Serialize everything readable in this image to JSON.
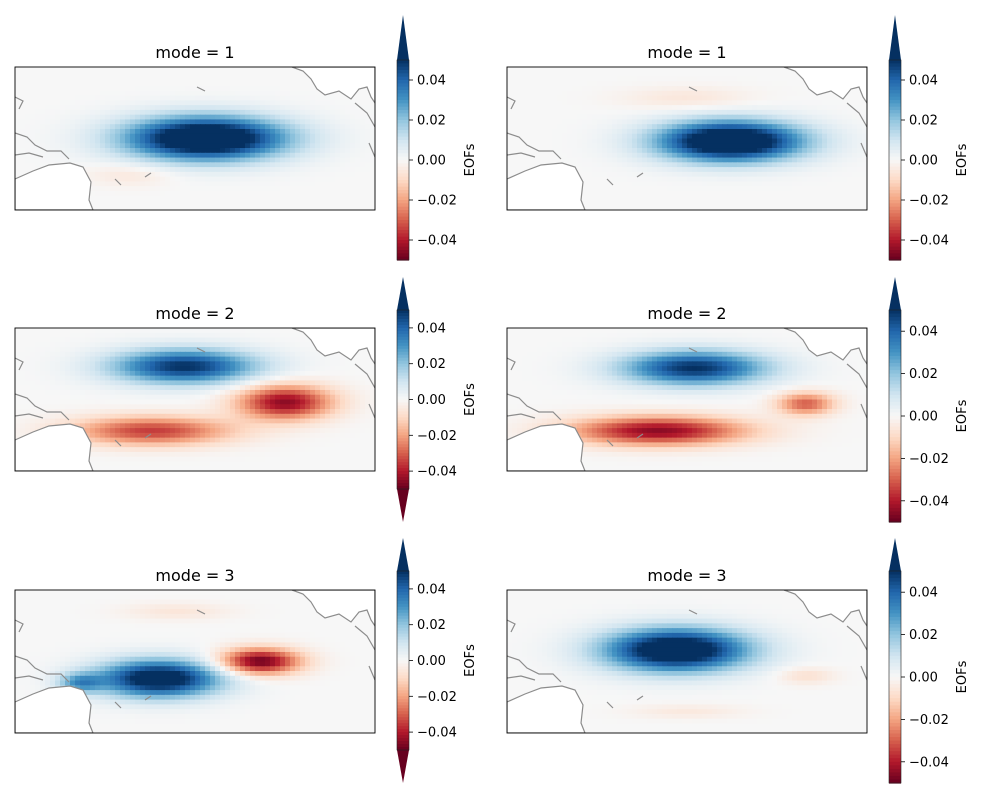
{
  "figure": {
    "background": "#ffffff"
  },
  "chart_data": [
    {
      "type": "heatmap",
      "title": "mode = 1",
      "map": "tropical-pacific",
      "colorbar": {
        "label": "EOFs",
        "ticks": [
          "0.04",
          "0.02",
          "0.00",
          "−0.02",
          "−0.04"
        ],
        "vmin": -0.05,
        "vmax": 0.05,
        "extend": "max",
        "cmap": "RdBu"
      },
      "blobs": [
        {
          "lon": 0.53,
          "lat": 0.5,
          "slon": 0.22,
          "slat": 0.15,
          "value": 0.07
        },
        {
          "lon": 0.32,
          "lat": 0.75,
          "slon": 0.12,
          "slat": 0.08,
          "value": -0.006
        }
      ]
    },
    {
      "type": "heatmap",
      "title": "mode = 1",
      "map": "tropical-pacific",
      "colorbar": {
        "label": "EOFs",
        "ticks": [
          "0.04",
          "0.02",
          "0.00",
          "−0.02",
          "−0.04"
        ],
        "vmin": -0.05,
        "vmax": 0.05,
        "extend": "max",
        "cmap": "RdBu"
      },
      "blobs": [
        {
          "lon": 0.62,
          "lat": 0.52,
          "slon": 0.2,
          "slat": 0.14,
          "value": 0.07
        },
        {
          "lon": 0.5,
          "lat": 0.22,
          "slon": 0.18,
          "slat": 0.08,
          "value": -0.006
        }
      ]
    },
    {
      "type": "heatmap",
      "title": "mode = 2",
      "map": "tropical-pacific",
      "colorbar": {
        "label": "EOFs",
        "ticks": [
          "0.04",
          "0.02",
          "0.00",
          "−0.02",
          "−0.04"
        ],
        "vmin": -0.05,
        "vmax": 0.05,
        "extend": "both",
        "cmap": "RdBu"
      },
      "blobs": [
        {
          "lon": 0.47,
          "lat": 0.27,
          "slon": 0.2,
          "slat": 0.12,
          "value": 0.05
        },
        {
          "lon": 0.75,
          "lat": 0.52,
          "slon": 0.13,
          "slat": 0.12,
          "value": -0.045
        },
        {
          "lon": 0.38,
          "lat": 0.72,
          "slon": 0.22,
          "slat": 0.1,
          "value": -0.035
        }
      ]
    },
    {
      "type": "heatmap",
      "title": "mode = 2",
      "map": "tropical-pacific",
      "colorbar": {
        "label": "EOFs",
        "ticks": [
          "0.04",
          "0.02",
          "0.00",
          "−0.02",
          "−0.04"
        ],
        "vmin": -0.05,
        "vmax": 0.05,
        "extend": "max",
        "cmap": "RdBu"
      },
      "blobs": [
        {
          "lon": 0.52,
          "lat": 0.28,
          "slon": 0.2,
          "slat": 0.12,
          "value": 0.05
        },
        {
          "lon": 0.42,
          "lat": 0.72,
          "slon": 0.24,
          "slat": 0.1,
          "value": -0.045
        },
        {
          "lon": 0.83,
          "lat": 0.53,
          "slon": 0.08,
          "slat": 0.08,
          "value": -0.03
        }
      ]
    },
    {
      "type": "heatmap",
      "title": "mode = 3",
      "map": "tropical-pacific",
      "colorbar": {
        "label": "EOFs",
        "ticks": [
          "0.04",
          "0.02",
          "0.00",
          "−0.02",
          "−0.04"
        ],
        "vmin": -0.05,
        "vmax": 0.05,
        "extend": "both",
        "cmap": "RdBu"
      },
      "blobs": [
        {
          "lon": 0.4,
          "lat": 0.62,
          "slon": 0.17,
          "slat": 0.13,
          "value": 0.06
        },
        {
          "lon": 0.68,
          "lat": 0.5,
          "slon": 0.11,
          "slat": 0.09,
          "value": -0.05
        },
        {
          "lon": 0.45,
          "lat": 0.15,
          "slon": 0.15,
          "slat": 0.06,
          "value": -0.006
        },
        {
          "lon": 0.18,
          "lat": 0.65,
          "slon": 0.06,
          "slat": 0.07,
          "value": 0.025
        }
      ]
    },
    {
      "type": "heatmap",
      "title": "mode = 3",
      "map": "tropical-pacific",
      "colorbar": {
        "label": "EOFs",
        "ticks": [
          "0.04",
          "0.02",
          "0.00",
          "−0.02",
          "−0.04"
        ],
        "vmin": -0.05,
        "vmax": 0.05,
        "extend": "max",
        "cmap": "RdBu"
      },
      "blobs": [
        {
          "lon": 0.47,
          "lat": 0.42,
          "slon": 0.2,
          "slat": 0.15,
          "value": 0.065
        },
        {
          "lon": 0.83,
          "lat": 0.6,
          "slon": 0.08,
          "slat": 0.06,
          "value": -0.008
        },
        {
          "lon": 0.5,
          "lat": 0.85,
          "slon": 0.16,
          "slat": 0.05,
          "value": -0.005
        }
      ]
    }
  ]
}
